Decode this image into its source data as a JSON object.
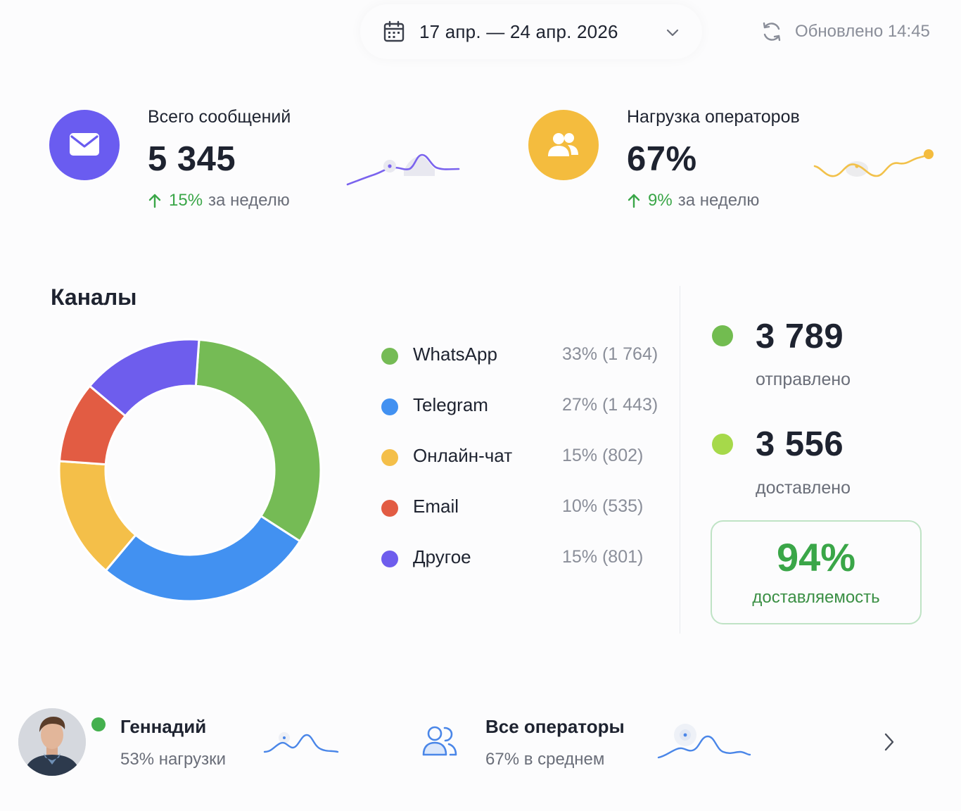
{
  "header": {
    "date_range": "17 апр. — 24 апр. 2026",
    "updated": "Обновлено 14:45"
  },
  "kpis": [
    {
      "title": "Всего сообщений",
      "value": "5 345",
      "delta_pct": "15%",
      "delta_text": "за неделю",
      "color": "#6a5cf0",
      "icon": "envelope-icon"
    },
    {
      "title": "Нагрузка операторов",
      "value": "67%",
      "delta_pct": "9%",
      "delta_text": "за неделю",
      "color": "#f4bc3e",
      "icon": "users-icon"
    }
  ],
  "channels": {
    "title": "Каналы",
    "items": [
      {
        "name": "WhatsApp",
        "value": "33% (1 764)",
        "color": "#75bb55"
      },
      {
        "name": "Telegram",
        "value": "27% (1 443)",
        "color": "#4291f1"
      },
      {
        "name": "Онлайн-чат",
        "value": "15% (802)",
        "color": "#f4bf49"
      },
      {
        "name": "Email",
        "value": "10% (535)",
        "color": "#e25c43"
      },
      {
        "name": "Другое",
        "value": "15% (801)",
        "color": "#6e5ded"
      }
    ]
  },
  "chart_data": {
    "type": "pie",
    "categories": [
      "WhatsApp",
      "Telegram",
      "Онлайн-чат",
      "Email",
      "Другое"
    ],
    "values": [
      1764,
      1443,
      802,
      535,
      801
    ],
    "colors": [
      "#75bb55",
      "#4291f1",
      "#f4bf49",
      "#e25c43",
      "#6e5ded"
    ]
  },
  "delivery": {
    "sent_value": "3 789",
    "sent_label": "отправлено",
    "sent_color": "#72bc50",
    "delivered_value": "3 556",
    "delivered_label": "доставлено",
    "delivered_color": "#a6d94a",
    "rate": "94%",
    "rate_label": "доставляемость"
  },
  "operators": [
    {
      "name": "Геннадий",
      "sub": "53% нагрузки",
      "status_color": "#44b04e"
    },
    {
      "name": "Все операторы",
      "sub": "67% в среднем",
      "icon": "users-outline-icon"
    }
  ],
  "colors": {
    "accent_purple": "#6a5cf0",
    "accent_yellow": "#f4bc3e",
    "positive": "#3aa648",
    "spark_blue": "#4a86e8"
  }
}
